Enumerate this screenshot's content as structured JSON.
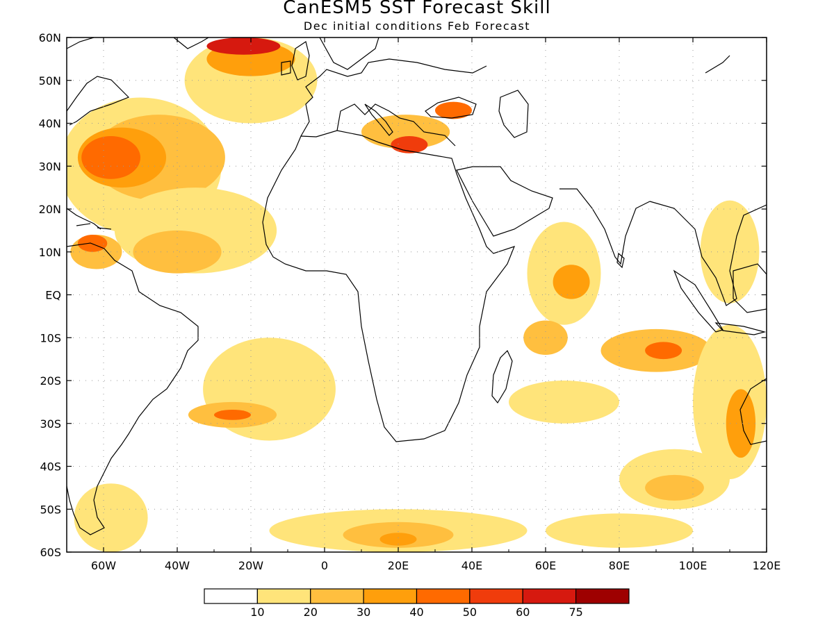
{
  "header": {
    "title": "CanESM5 SST Forecast Skill",
    "subtitle": "Dec initial conditions  Feb Forecast"
  },
  "map": {
    "lon_range": [
      -70,
      120
    ],
    "lat_range": [
      -60,
      60
    ],
    "lon_ticks": [
      {
        "value": -60,
        "label": "60W"
      },
      {
        "value": -40,
        "label": "40W"
      },
      {
        "value": -20,
        "label": "20W"
      },
      {
        "value": 0,
        "label": "0"
      },
      {
        "value": 20,
        "label": "20E"
      },
      {
        "value": 40,
        "label": "40E"
      },
      {
        "value": 60,
        "label": "60E"
      },
      {
        "value": 80,
        "label": "80E"
      },
      {
        "value": 100,
        "label": "100E"
      },
      {
        "value": 120,
        "label": "120E"
      }
    ],
    "lat_ticks": [
      {
        "value": 60,
        "label": "60N"
      },
      {
        "value": 50,
        "label": "50N"
      },
      {
        "value": 40,
        "label": "40N"
      },
      {
        "value": 30,
        "label": "30N"
      },
      {
        "value": 20,
        "label": "20N"
      },
      {
        "value": 10,
        "label": "10N"
      },
      {
        "value": 0,
        "label": "EQ"
      },
      {
        "value": -10,
        "label": "10S"
      },
      {
        "value": -20,
        "label": "20S"
      },
      {
        "value": -30,
        "label": "30S"
      },
      {
        "value": -40,
        "label": "40S"
      },
      {
        "value": -50,
        "label": "50S"
      },
      {
        "value": -60,
        "label": "60S"
      }
    ],
    "grid": true,
    "skill_regions": [
      {
        "level": 1,
        "lon": -50,
        "lat": 30,
        "rx": 22,
        "ry": 16
      },
      {
        "level": 2,
        "lon": -45,
        "lat": 32,
        "rx": 18,
        "ry": 10
      },
      {
        "level": 3,
        "lon": -55,
        "lat": 32,
        "rx": 12,
        "ry": 7
      },
      {
        "level": 4,
        "lon": -58,
        "lat": 32,
        "rx": 8,
        "ry": 5
      },
      {
        "level": 1,
        "lon": -35,
        "lat": 15,
        "rx": 22,
        "ry": 10
      },
      {
        "level": 2,
        "lon": -40,
        "lat": 10,
        "rx": 12,
        "ry": 5
      },
      {
        "level": 1,
        "lon": -20,
        "lat": 50,
        "rx": 18,
        "ry": 10
      },
      {
        "level": 3,
        "lon": -20,
        "lat": 55,
        "rx": 12,
        "ry": 4
      },
      {
        "level": 6,
        "lon": -22,
        "lat": 58,
        "rx": 10,
        "ry": 2
      },
      {
        "level": 2,
        "lon": -62,
        "lat": 10,
        "rx": 7,
        "ry": 4
      },
      {
        "level": 4,
        "lon": -63,
        "lat": 12,
        "rx": 4,
        "ry": 2
      },
      {
        "level": 2,
        "lon": 22,
        "lat": 38,
        "rx": 12,
        "ry": 4
      },
      {
        "level": 5,
        "lon": 23,
        "lat": 35,
        "rx": 5,
        "ry": 2
      },
      {
        "level": 4,
        "lon": 35,
        "lat": 43,
        "rx": 5,
        "ry": 2
      },
      {
        "level": 1,
        "lon": 65,
        "lat": 5,
        "rx": 10,
        "ry": 12
      },
      {
        "level": 3,
        "lon": 67,
        "lat": 3,
        "rx": 5,
        "ry": 4
      },
      {
        "level": 1,
        "lon": 110,
        "lat": 10,
        "rx": 8,
        "ry": 12
      },
      {
        "level": 2,
        "lon": 90,
        "lat": -13,
        "rx": 15,
        "ry": 5
      },
      {
        "level": 4,
        "lon": 92,
        "lat": -13,
        "rx": 5,
        "ry": 2
      },
      {
        "level": 1,
        "lon": 65,
        "lat": -25,
        "rx": 15,
        "ry": 5
      },
      {
        "level": 2,
        "lon": 60,
        "lat": -10,
        "rx": 6,
        "ry": 4
      },
      {
        "level": 1,
        "lon": 110,
        "lat": -25,
        "rx": 10,
        "ry": 18
      },
      {
        "level": 3,
        "lon": 113,
        "lat": -30,
        "rx": 4,
        "ry": 8
      },
      {
        "level": 1,
        "lon": 95,
        "lat": -43,
        "rx": 15,
        "ry": 7
      },
      {
        "level": 2,
        "lon": 95,
        "lat": -45,
        "rx": 8,
        "ry": 3
      },
      {
        "level": 1,
        "lon": -15,
        "lat": -22,
        "rx": 18,
        "ry": 12
      },
      {
        "level": 2,
        "lon": -25,
        "lat": -28,
        "rx": 12,
        "ry": 3
      },
      {
        "level": 4,
        "lon": -25,
        "lat": -28,
        "rx": 5,
        "ry": 1.2
      },
      {
        "level": 1,
        "lon": 20,
        "lat": -55,
        "rx": 35,
        "ry": 5
      },
      {
        "level": 2,
        "lon": 20,
        "lat": -56,
        "rx": 15,
        "ry": 3
      },
      {
        "level": 3,
        "lon": 20,
        "lat": -57,
        "rx": 5,
        "ry": 1.5
      },
      {
        "level": 1,
        "lon": 80,
        "lat": -55,
        "rx": 20,
        "ry": 4
      },
      {
        "level": 1,
        "lon": -58,
        "lat": -52,
        "rx": 10,
        "ry": 8
      }
    ]
  },
  "legend": {
    "colors": [
      "#ffffff",
      "#ffe47a",
      "#ffbf3f",
      "#ff9f0c",
      "#ff6a00",
      "#f03c0c",
      "#d6190f",
      "#9e0000"
    ],
    "labels": [
      "10",
      "20",
      "30",
      "40",
      "50",
      "60",
      "75"
    ]
  }
}
